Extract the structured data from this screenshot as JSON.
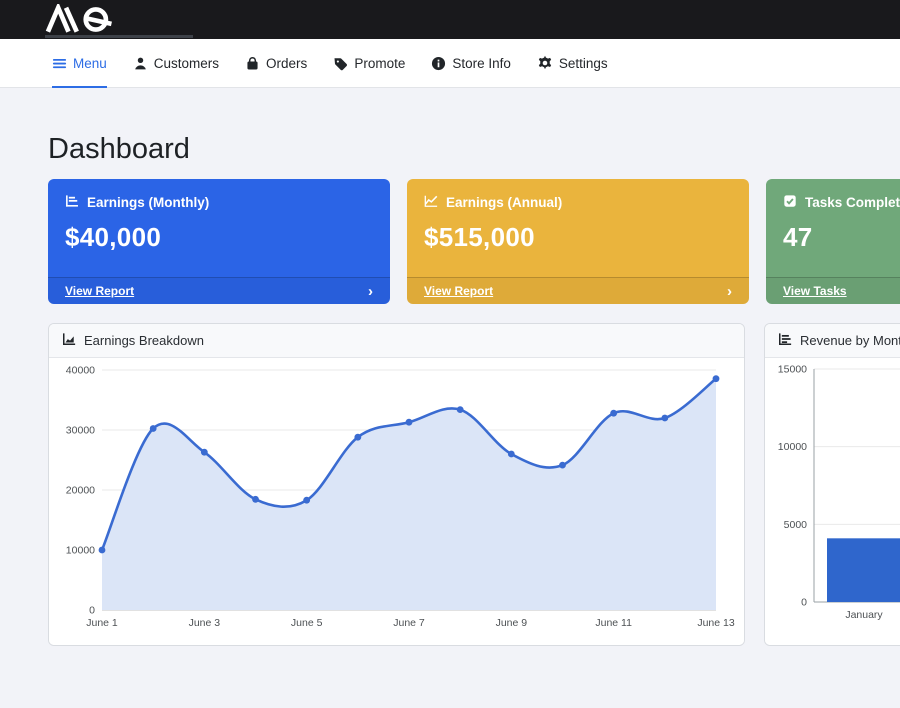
{
  "brand": {
    "name": "AQ"
  },
  "nav": {
    "active_color": "#2d6de5",
    "items": [
      {
        "label": "Menu",
        "icon": "hamburger-icon",
        "active": true
      },
      {
        "label": "Customers",
        "icon": "person-icon",
        "active": false
      },
      {
        "label": "Orders",
        "icon": "bag-icon",
        "active": false
      },
      {
        "label": "Promote",
        "icon": "tag-icon",
        "active": false
      },
      {
        "label": "Store Info",
        "icon": "info-icon",
        "active": false
      },
      {
        "label": "Settings",
        "icon": "gear-icon",
        "active": false
      }
    ]
  },
  "page": {
    "title": "Dashboard"
  },
  "stat_cards": [
    {
      "title": "Earnings (Monthly)",
      "value": "$40,000",
      "footer_label": "View Report",
      "chevron": "›",
      "color": "#2b64e6",
      "icon": "bar-chart-icon"
    },
    {
      "title": "Earnings (Annual)",
      "value": "$515,000",
      "footer_label": "View Report",
      "chevron": "›",
      "color": "#eab43d",
      "icon": "line-chart-icon"
    },
    {
      "title": "Tasks Completed",
      "value": "47",
      "footer_label": "View Tasks",
      "chevron": "›",
      "color": "#70a87a",
      "icon": "check-square-icon"
    }
  ],
  "chart_data": [
    {
      "type": "line",
      "title": "Earnings Breakdown",
      "x": [
        "June 1",
        "June 2",
        "June 3",
        "June 4",
        "June 5",
        "June 6",
        "June 7",
        "June 8",
        "June 9",
        "June 10",
        "June 11",
        "June 12",
        "June 13"
      ],
      "values": [
        10000,
        30250,
        26300,
        18450,
        18300,
        28800,
        31300,
        33400,
        26000,
        24150,
        32800,
        32000,
        38550
      ],
      "ylim": [
        0,
        40000
      ],
      "yticks": [
        0,
        10000,
        20000,
        30000,
        40000
      ],
      "x_label_step": 2,
      "grid": true,
      "legend": "none",
      "line_color": "#3a6bd1",
      "fill_color": "#dbe5f7",
      "grid_color": "#e9e9e9",
      "axis_color": "#c3c3c3",
      "tick_color": "#4d5154"
    },
    {
      "type": "bar",
      "title": "Revenue by Month",
      "categories": [
        "January"
      ],
      "values": [
        4100
      ],
      "ylim": [
        0,
        15000
      ],
      "yticks": [
        0,
        5000,
        10000,
        15000
      ],
      "grid": true,
      "legend": "none",
      "bar_color": "#2f66cc",
      "grid_color": "#e9e9e9",
      "axis_color": "#9aa0a6",
      "tick_color": "#4d5154"
    }
  ]
}
